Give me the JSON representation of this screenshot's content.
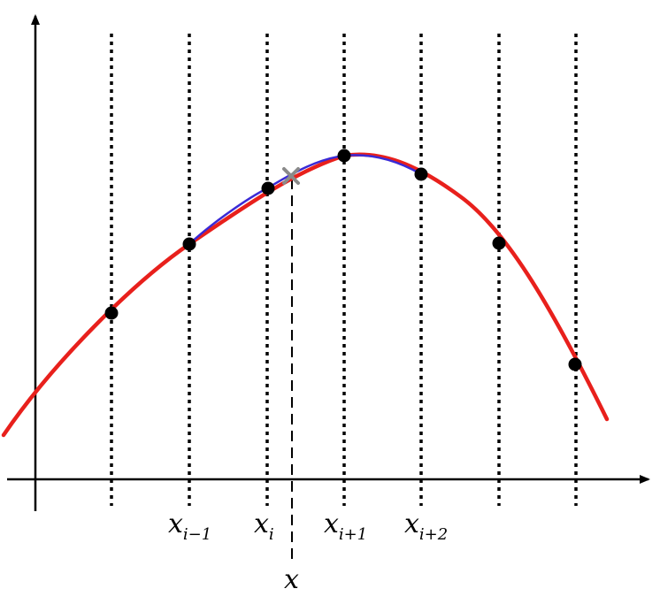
{
  "diagram": {
    "sample_count": 7,
    "labels": {
      "x_im1": {
        "base": "x",
        "sub": "i−1"
      },
      "x_i": {
        "base": "x",
        "sub": "i"
      },
      "x_ip1": {
        "base": "x",
        "sub": "i+1"
      },
      "x_ip2": {
        "base": "x",
        "sub": "i+2"
      },
      "x": {
        "base": "x"
      }
    },
    "colors": {
      "curve": "#e8201c",
      "interp": "#3a2ad6",
      "points": "#000000",
      "query_marker": "#8a8a8a",
      "axes": "#000000"
    }
  }
}
